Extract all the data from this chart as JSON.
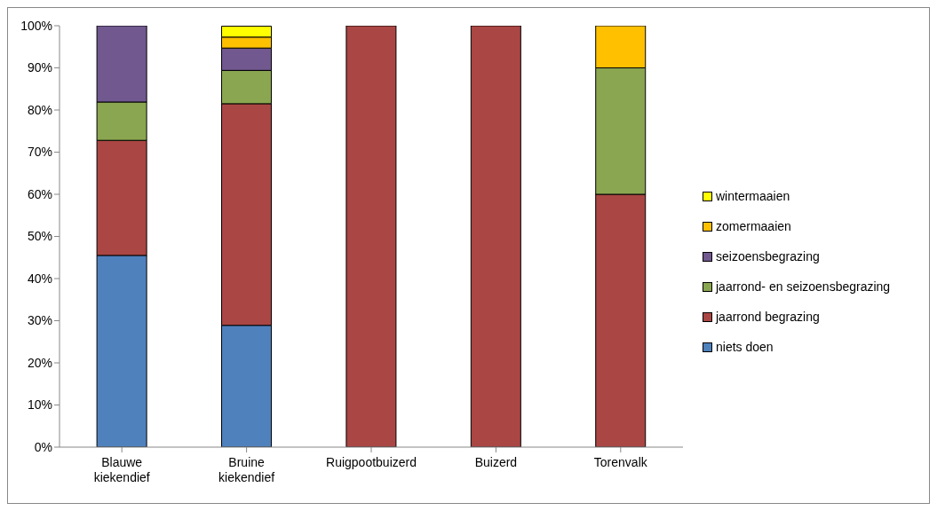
{
  "chart_data": {
    "type": "bar",
    "stacked": true,
    "categories": [
      "Blauwe kiekendief",
      "Bruine kiekendief",
      "Ruigpootbuizerd",
      "Buizerd",
      "Torenvalk"
    ],
    "series": [
      {
        "name": "niets doen",
        "color": "#4f81bd",
        "values": [
          45.5,
          28.9,
          null,
          null,
          null
        ]
      },
      {
        "name": "jaarrond begrazing",
        "color": "#aa4644",
        "values": [
          27.3,
          52.6,
          100,
          100,
          60
        ]
      },
      {
        "name": "jaarrond- en seizoensbegrazing",
        "color": "#8aa650",
        "values": [
          9.1,
          7.9,
          null,
          null,
          30
        ]
      },
      {
        "name": "seizoensbegrazing",
        "color": "#71588f",
        "values": [
          18.2,
          5.3,
          null,
          null,
          null
        ]
      },
      {
        "name": "zomermaaien",
        "color": "#ffc000",
        "values": [
          null,
          2.6,
          null,
          null,
          10
        ]
      },
      {
        "name": "wintermaaien",
        "color": "#ffff00",
        "values": [
          null,
          2.6,
          null,
          null,
          null
        ]
      }
    ],
    "ylim": [
      0,
      100
    ],
    "yticks": [
      {
        "value": 0,
        "label": "0%"
      },
      {
        "value": 10,
        "label": "10%"
      },
      {
        "value": 20,
        "label": "20%"
      },
      {
        "value": 30,
        "label": "30%"
      },
      {
        "value": 40,
        "label": "40%"
      },
      {
        "value": 50,
        "label": "50%"
      },
      {
        "value": 60,
        "label": "60%"
      },
      {
        "value": 70,
        "label": "70%"
      },
      {
        "value": 80,
        "label": "80%"
      },
      {
        "value": 90,
        "label": "90%"
      },
      {
        "value": 100,
        "label": "100%"
      }
    ],
    "grid": false,
    "legend": "right"
  }
}
